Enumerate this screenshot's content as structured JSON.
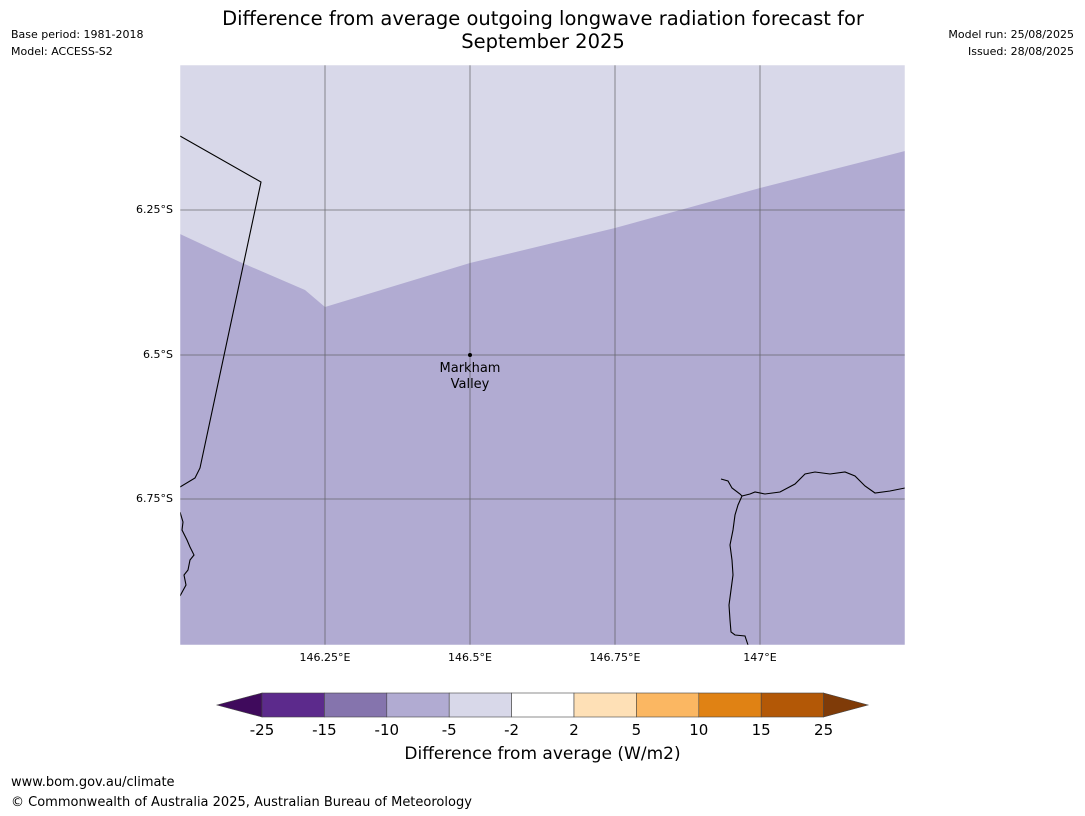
{
  "header": {
    "title_line1": "Difference from average outgoing longwave radiation forecast for",
    "title_line2": "September 2025",
    "base_period": "Base period: 1981-2018",
    "model": "Model: ACCESS-S2",
    "model_run": "Model run: 25/08/2025",
    "issued": "Issued: 28/08/2025"
  },
  "map": {
    "lat_labels": [
      "6.25°S",
      "6.5°S",
      "6.75°S"
    ],
    "lon_labels": [
      "146.25°E",
      "146.5°E",
      "146.75°E",
      "147°E"
    ],
    "place": {
      "name_line1": "Markham",
      "name_line2": "Valley"
    },
    "colors": {
      "band_-5_-2": "#d8d8e9",
      "band_-10_-5": "#b1abd2"
    }
  },
  "colorbar": {
    "ticks": [
      "-25",
      "-15",
      "-10",
      "-5",
      "-2",
      "2",
      "5",
      "10",
      "15",
      "25"
    ],
    "colors": [
      "#3f0a5c",
      "#5c2a8c",
      "#8574ad",
      "#b1abd2",
      "#d8d8e9",
      "#ffffff",
      "#fee0b6",
      "#fbb762",
      "#e08214",
      "#b35806",
      "#7f3b08"
    ],
    "title": "Difference from average (W/m2)"
  },
  "footer": {
    "url": "www.bom.gov.au/climate",
    "copyright": "© Commonwealth of Australia 2025, Australian Bureau of Meteorology"
  }
}
